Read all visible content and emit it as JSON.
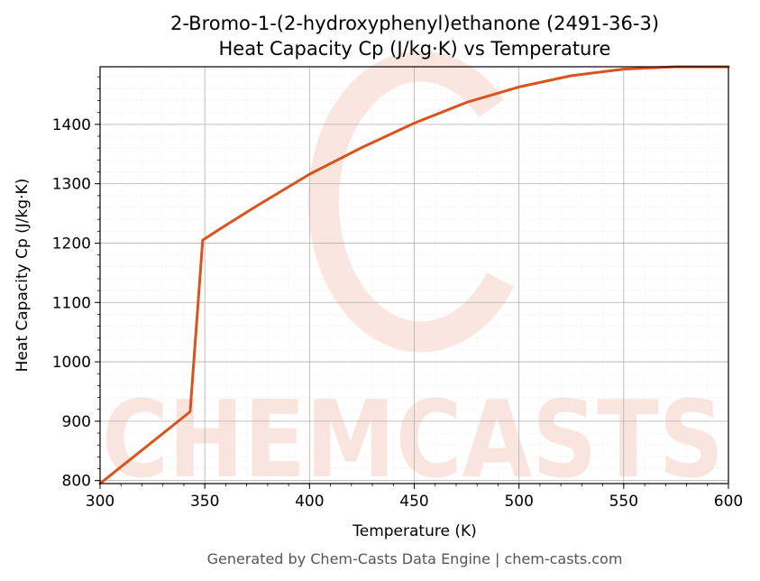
{
  "chart_data": {
    "type": "line",
    "title_line1": "2-Bromo-1-(2-hydroxyphenyl)ethanone (2491-36-3)",
    "title_line2": "Heat Capacity Cp (J/kg·K) vs Temperature",
    "xlabel": "Temperature (K)",
    "ylabel": "Heat Capacity Cp (J/kg·K)",
    "xlim": [
      300,
      600
    ],
    "ylim": [
      795,
      1497
    ],
    "xticks": [
      300,
      350,
      400,
      450,
      500,
      550,
      600
    ],
    "yticks": [
      800,
      900,
      1000,
      1100,
      1200,
      1300,
      1400
    ],
    "grid": true,
    "series": [
      {
        "color": "#d9531e",
        "x": [
          300,
          343,
          349,
          360,
          375,
          400,
          425,
          450,
          475,
          500,
          525,
          550,
          575,
          600
        ],
        "y": [
          795,
          916,
          1205,
          1230,
          1263,
          1316,
          1361,
          1402,
          1437,
          1463,
          1482,
          1493,
          1497,
          1497
        ]
      }
    ]
  },
  "watermark": {
    "text": "CHEMCASTS",
    "color": "#f7cfc4"
  },
  "footer": "Generated by Chem-Casts Data Engine | chem-casts.com"
}
